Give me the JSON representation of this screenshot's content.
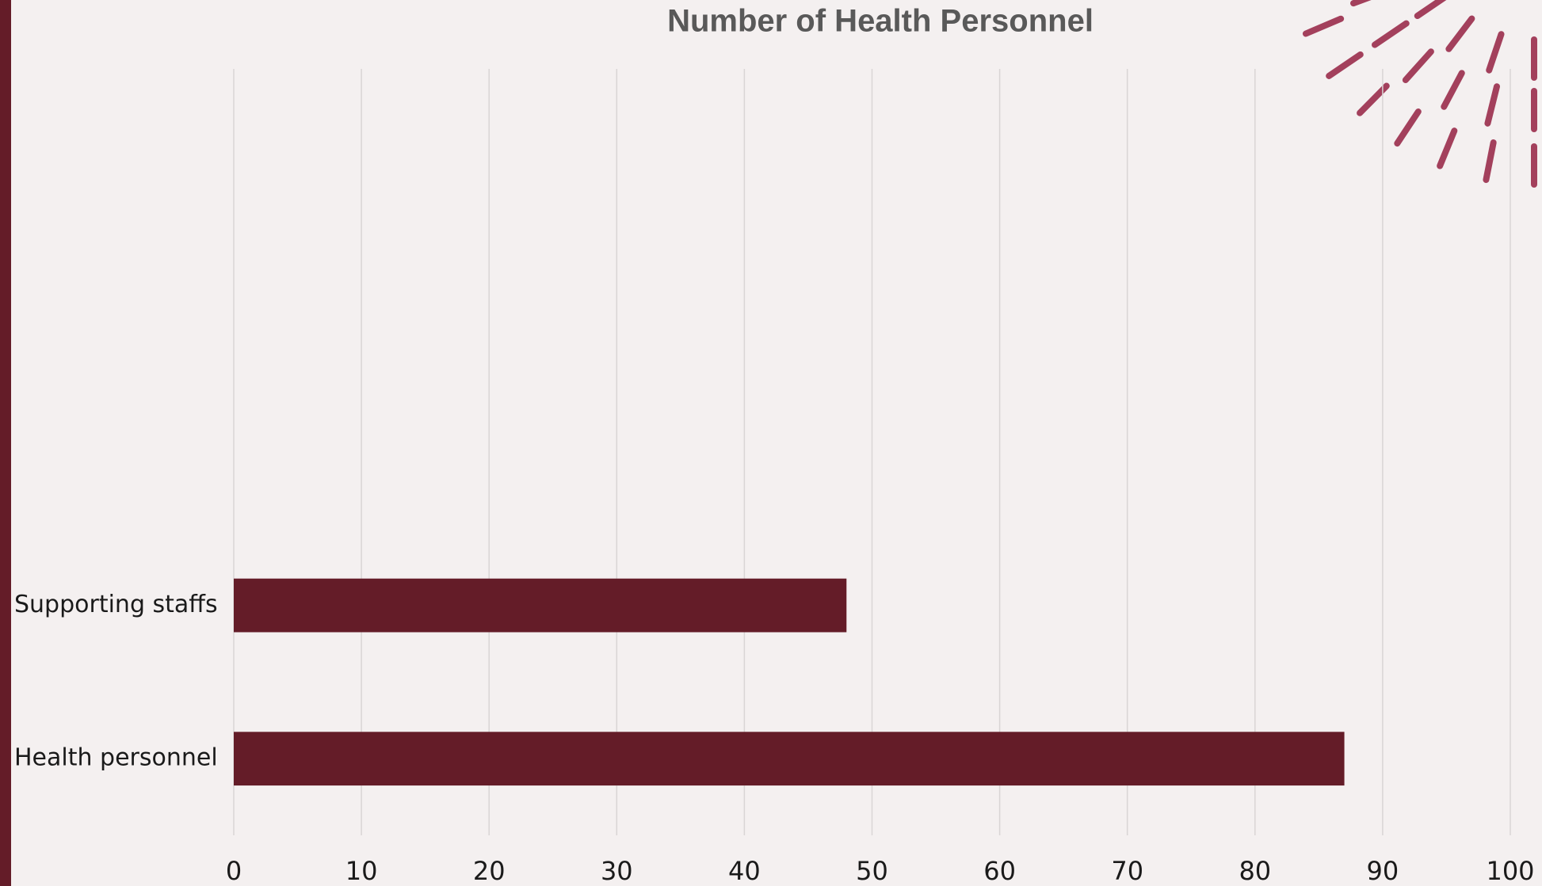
{
  "chart_data": {
    "type": "bar",
    "orientation": "horizontal",
    "title": "Number of Health Personnel",
    "categories": [
      null,
      null,
      null,
      "Supporting staffs",
      "Health personnel"
    ],
    "values": [
      null,
      null,
      null,
      48,
      87
    ],
    "color": "#641c28",
    "xlim": [
      0,
      100
    ],
    "xticks": [
      0,
      10,
      20,
      30,
      40,
      50,
      60,
      70,
      80,
      90,
      100
    ],
    "grid": true
  }
}
